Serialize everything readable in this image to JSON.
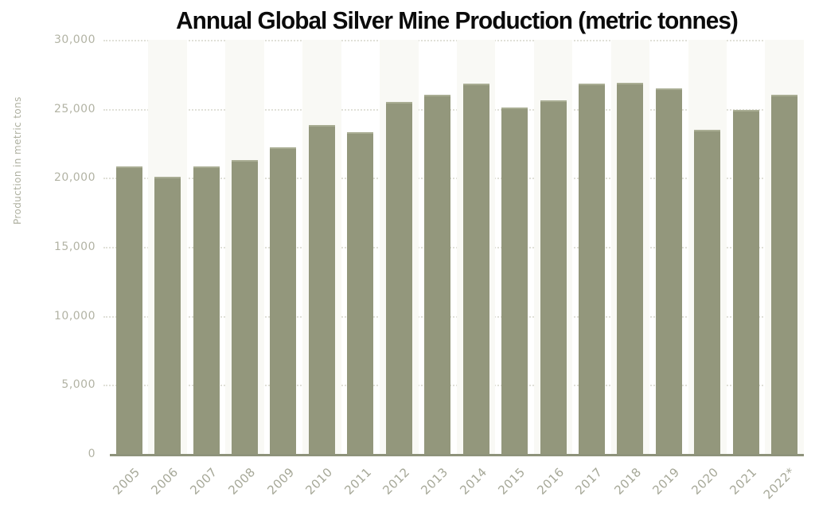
{
  "page": {
    "title": "Annual Global Silver Mine Production (metric tonnes)"
  },
  "chart_data": {
    "type": "bar",
    "title": "Annual Global Silver Mine Production (metric tonnes)",
    "xlabel": "",
    "ylabel": "Production in metric tons",
    "ylim": [
      0,
      30000
    ],
    "yticks": [
      0,
      5000,
      10000,
      15000,
      20000,
      25000,
      30000
    ],
    "ytick_labels": [
      "0",
      "5,000",
      "10,000",
      "15,000",
      "20,000",
      "25,000",
      "30,000"
    ],
    "categories": [
      "2005",
      "2006",
      "2007",
      "2008",
      "2009",
      "2010",
      "2011",
      "2012",
      "2013",
      "2014",
      "2015",
      "2016",
      "2017",
      "2018",
      "2019",
      "2020",
      "2021",
      "2022*"
    ],
    "values": [
      20800,
      20100,
      20800,
      21300,
      22200,
      23800,
      23300,
      25500,
      26000,
      26800,
      25100,
      25600,
      26800,
      26900,
      26500,
      23500,
      24900,
      26000
    ],
    "grid": "horizontal-dotted",
    "legend": "none",
    "colors": {
      "bar": "#93977c",
      "bar_edge": "#a9ad93",
      "baseline": "#8e937b",
      "gridline": "#e0e0d8",
      "column_stripe": "#f9f9f5",
      "axis_text": "#aeb0a0",
      "title_text": "#0b0b0b"
    }
  }
}
